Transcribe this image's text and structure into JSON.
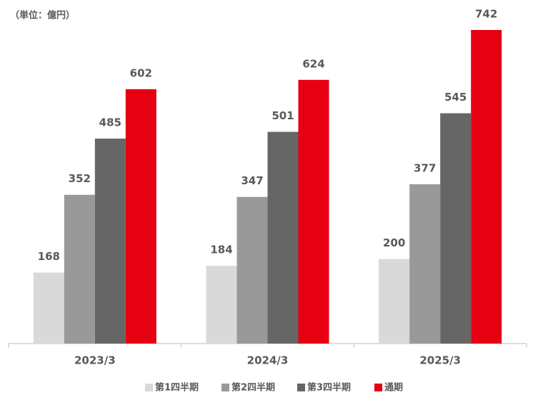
{
  "chart_data": {
    "type": "bar",
    "unit_label": "（単位：億円）",
    "categories": [
      "2023/3",
      "2024/3",
      "2025/3"
    ],
    "series": [
      {
        "name": "第1四半期",
        "color": "#d9d9d9",
        "values": [
          168,
          184,
          200
        ]
      },
      {
        "name": "第2四半期",
        "color": "#999999",
        "values": [
          352,
          347,
          377
        ]
      },
      {
        "name": "第3四半期",
        "color": "#666666",
        "values": [
          485,
          501,
          545
        ]
      },
      {
        "name": "通期",
        "color": "#e60012",
        "values": [
          602,
          624,
          742
        ]
      }
    ]
  }
}
